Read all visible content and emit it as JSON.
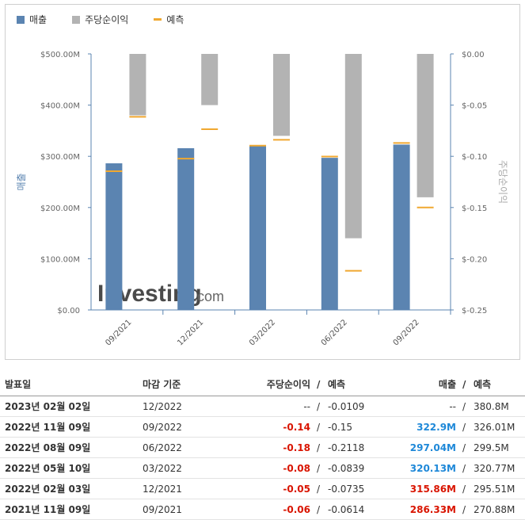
{
  "legend": {
    "revenue": "매출",
    "eps": "주당순이익",
    "forecast": "예측"
  },
  "colors": {
    "revenue": "#5b84b1",
    "eps": "#b3b3b3",
    "forecast": "#f0a830",
    "negative": "#d91400",
    "positive": "#1e88d8"
  },
  "watermark": {
    "brand": "Investing",
    "suffix": ".com"
  },
  "chart_data": {
    "type": "bar",
    "categories": [
      "09/2021",
      "12/2021",
      "03/2022",
      "06/2022",
      "09/2022"
    ],
    "series": [
      {
        "name": "매출",
        "axis": "left",
        "values": [
          286.33,
          315.86,
          320.13,
          297.04,
          322.9
        ],
        "unit": "M"
      },
      {
        "name": "주당순이익",
        "axis": "right",
        "values": [
          -0.06,
          -0.05,
          -0.08,
          -0.18,
          -0.14
        ]
      },
      {
        "name": "예측",
        "axis": "left",
        "values": [
          270.88,
          295.51,
          320.77,
          299.5,
          326.01
        ],
        "marker": "line"
      },
      {
        "name": "예측",
        "axis": "right",
        "values": [
          -0.0614,
          -0.0735,
          -0.0839,
          -0.2118,
          -0.15
        ],
        "marker": "line"
      }
    ],
    "ylabel": "매출",
    "y2label": "주당순이익",
    "ylim": [
      0,
      500
    ],
    "y2lim": [
      -0.25,
      0
    ],
    "yticks": [
      "$0.00",
      "$100.00M",
      "$200.00M",
      "$300.00M",
      "$400.00M",
      "$500.00M"
    ],
    "y2ticks": [
      "$-0.25",
      "$-0.20",
      "$-0.15",
      "$-0.10",
      "$-0.05",
      "$0.00"
    ]
  },
  "table": {
    "headers": {
      "date": "발표일",
      "period": "마감 기준",
      "eps": "주당순이익",
      "eps_sep": "/",
      "eps_forecast": "예측",
      "revenue": "매출",
      "rev_sep": "/",
      "rev_forecast": "예측"
    },
    "rows": [
      {
        "date": "2023년 02월 02일",
        "period": "12/2022",
        "eps": "--",
        "eps_sep": "/",
        "eps_forecast": "-0.0109",
        "revenue": "--",
        "rev_sep": "/",
        "rev_forecast": "380.8M",
        "eps_class": "plain",
        "rev_class": "plain"
      },
      {
        "date": "2022년 11월 09일",
        "period": "09/2022",
        "eps": "-0.14",
        "eps_sep": "/",
        "eps_forecast": "-0.15",
        "revenue": "322.9M",
        "rev_sep": "/",
        "rev_forecast": "326.01M",
        "eps_class": "neg",
        "rev_class": "blue"
      },
      {
        "date": "2022년 08월 09일",
        "period": "06/2022",
        "eps": "-0.18",
        "eps_sep": "/",
        "eps_forecast": "-0.2118",
        "revenue": "297.04M",
        "rev_sep": "/",
        "rev_forecast": "299.5M",
        "eps_class": "neg",
        "rev_class": "blue"
      },
      {
        "date": "2022년 05월 10일",
        "period": "03/2022",
        "eps": "-0.08",
        "eps_sep": "/",
        "eps_forecast": "-0.0839",
        "revenue": "320.13M",
        "rev_sep": "/",
        "rev_forecast": "320.77M",
        "eps_class": "neg",
        "rev_class": "blue"
      },
      {
        "date": "2022년 02월 03일",
        "period": "12/2021",
        "eps": "-0.05",
        "eps_sep": "/",
        "eps_forecast": "-0.0735",
        "revenue": "315.86M",
        "rev_sep": "/",
        "rev_forecast": "295.51M",
        "eps_class": "neg",
        "rev_class": "neg"
      },
      {
        "date": "2021년 11월 09일",
        "period": "09/2021",
        "eps": "-0.06",
        "eps_sep": "/",
        "eps_forecast": "-0.0614",
        "revenue": "286.33M",
        "rev_sep": "/",
        "rev_forecast": "270.88M",
        "eps_class": "neg",
        "rev_class": "neg"
      }
    ]
  }
}
